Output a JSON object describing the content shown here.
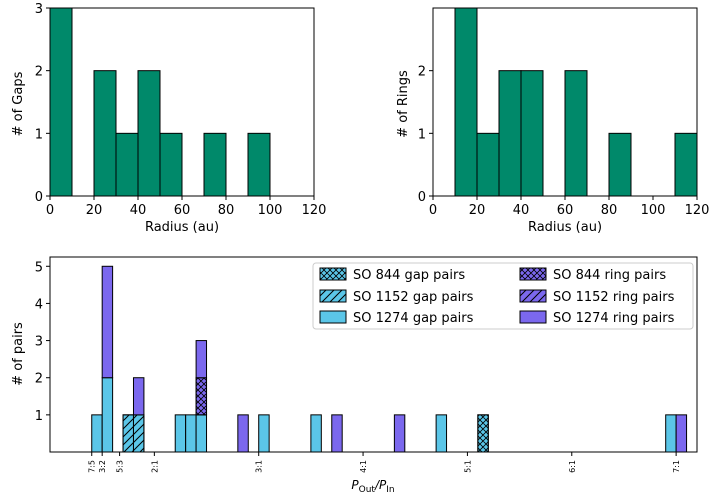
{
  "colors": {
    "green": "#00896a",
    "gap_blue": "#5bc6e8",
    "ring_purple": "#7b68ee",
    "edge": "#000000"
  },
  "chart_data": [
    {
      "id": "gaps",
      "type": "bar",
      "title": "",
      "xlabel": "Radius (au)",
      "ylabel": "# of Gaps",
      "xlim": [
        0,
        120
      ],
      "ylim": [
        0,
        3
      ],
      "xticks": [
        "0",
        "20",
        "40",
        "60",
        "80",
        "100",
        "120"
      ],
      "yticks": [
        "0",
        "1",
        "2",
        "3"
      ],
      "bin_width": 10,
      "bins": [
        {
          "x0": 0,
          "value": 3
        },
        {
          "x0": 20,
          "value": 2
        },
        {
          "x0": 30,
          "value": 1
        },
        {
          "x0": 40,
          "value": 2
        },
        {
          "x0": 50,
          "value": 1
        },
        {
          "x0": 70,
          "value": 1
        },
        {
          "x0": 90,
          "value": 1
        }
      ]
    },
    {
      "id": "rings",
      "type": "bar",
      "title": "",
      "xlabel": "Radius (au)",
      "ylabel": "# of Rings",
      "xlim": [
        0,
        120
      ],
      "ylim": [
        0,
        3
      ],
      "xticks": [
        "0",
        "20",
        "40",
        "60",
        "80",
        "100",
        "120"
      ],
      "yticks": [
        "0",
        "1",
        "2"
      ],
      "bin_width": 10,
      "bins": [
        {
          "x0": 10,
          "value": 3
        },
        {
          "x0": 20,
          "value": 1
        },
        {
          "x0": 30,
          "value": 2
        },
        {
          "x0": 40,
          "value": 2
        },
        {
          "x0": 60,
          "value": 2
        },
        {
          "x0": 80,
          "value": 1
        },
        {
          "x0": 110,
          "value": 1
        }
      ]
    },
    {
      "id": "pairs",
      "type": "bar",
      "title": "",
      "xlabel_main": "P",
      "xlabel_sub_out": "Out",
      "xlabel_slash": "/P",
      "xlabel_sub_in": "In",
      "ylabel": "# of pairs",
      "xlim": [
        1.0,
        7.2
      ],
      "ylim": [
        0,
        5.25
      ],
      "yticks": [
        "1",
        "2",
        "3",
        "4",
        "5"
      ],
      "xticks": [
        {
          "value": 1.4,
          "label": "7:5"
        },
        {
          "value": 1.5,
          "label": "3:2"
        },
        {
          "value": 1.667,
          "label": "5:3"
        },
        {
          "value": 2.0,
          "label": "2:1"
        },
        {
          "value": 3.0,
          "label": "3:1"
        },
        {
          "value": 4.0,
          "label": "4:1"
        },
        {
          "value": 5.0,
          "label": "5:1"
        },
        {
          "value": 6.0,
          "label": "6:1"
        },
        {
          "value": 7.0,
          "label": "7:1"
        }
      ],
      "bin_width": 0.1,
      "legend_position": "top-right",
      "series": [
        {
          "key": "so844_gap",
          "name": "SO 844 gap pairs",
          "kind": "gap",
          "hatch": "cross"
        },
        {
          "key": "so1152_gap",
          "name": "SO 1152 gap pairs",
          "kind": "gap",
          "hatch": "diag"
        },
        {
          "key": "so1274_gap",
          "name": "SO 1274 gap pairs",
          "kind": "gap",
          "hatch": "none"
        },
        {
          "key": "so844_ring",
          "name": "SO 844 ring pairs",
          "kind": "ring",
          "hatch": "cross"
        },
        {
          "key": "so1152_ring",
          "name": "SO 1152 ring pairs",
          "kind": "ring",
          "hatch": "diag"
        },
        {
          "key": "so1274_ring",
          "name": "SO 1274 ring pairs",
          "kind": "ring",
          "hatch": "none"
        }
      ],
      "bars": [
        {
          "x0": 1.4,
          "stack": [
            {
              "series": "so1274_gap",
              "count": 1
            }
          ]
        },
        {
          "x0": 1.5,
          "stack": [
            {
              "series": "so1274_gap",
              "count": 2
            },
            {
              "series": "so1274_ring",
              "count": 3
            }
          ]
        },
        {
          "x0": 1.7,
          "stack": [
            {
              "series": "so1152_gap",
              "count": 1
            }
          ]
        },
        {
          "x0": 1.8,
          "stack": [
            {
              "series": "so1152_gap",
              "count": 1
            },
            {
              "series": "so1274_ring",
              "count": 1
            }
          ]
        },
        {
          "x0": 2.2,
          "stack": [
            {
              "series": "so1274_gap",
              "count": 1
            }
          ]
        },
        {
          "x0": 2.3,
          "stack": [
            {
              "series": "so1274_gap",
              "count": 1
            }
          ]
        },
        {
          "x0": 2.4,
          "stack": [
            {
              "series": "so1274_gap",
              "count": 1
            },
            {
              "series": "so844_ring",
              "count": 1
            },
            {
              "series": "so1274_ring",
              "count": 1
            }
          ]
        },
        {
          "x0": 2.8,
          "stack": [
            {
              "series": "so1274_ring",
              "count": 1
            }
          ]
        },
        {
          "x0": 3.0,
          "stack": [
            {
              "series": "so1274_gap",
              "count": 1
            }
          ]
        },
        {
          "x0": 3.5,
          "stack": [
            {
              "series": "so1274_gap",
              "count": 1
            }
          ]
        },
        {
          "x0": 3.7,
          "stack": [
            {
              "series": "so1274_ring",
              "count": 1
            }
          ]
        },
        {
          "x0": 4.3,
          "stack": [
            {
              "series": "so1274_ring",
              "count": 1
            }
          ]
        },
        {
          "x0": 4.7,
          "stack": [
            {
              "series": "so1274_gap",
              "count": 1
            }
          ]
        },
        {
          "x0": 5.1,
          "stack": [
            {
              "series": "so844_gap",
              "count": 1
            }
          ]
        },
        {
          "x0": 6.9,
          "stack": [
            {
              "series": "so1274_gap",
              "count": 1
            }
          ]
        },
        {
          "x0": 7.0,
          "stack": [
            {
              "series": "so1274_ring",
              "count": 1
            }
          ]
        }
      ]
    }
  ]
}
